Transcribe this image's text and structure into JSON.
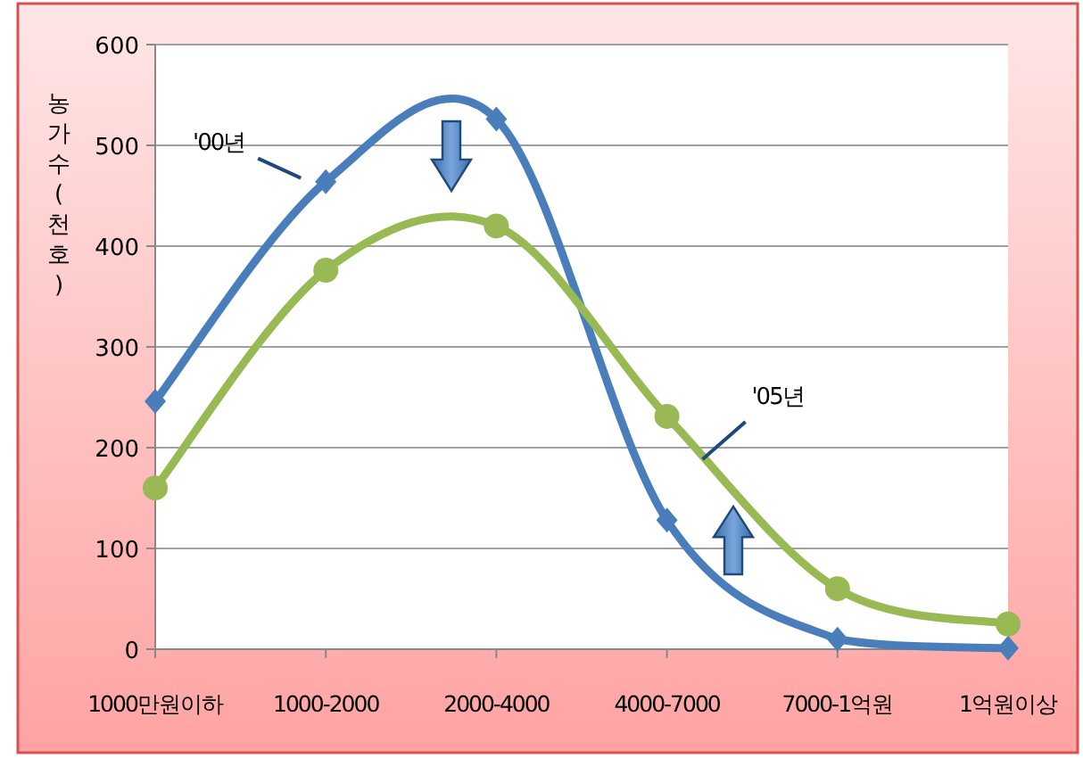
{
  "chart_data": {
    "type": "line",
    "ylabel": "농가수(천호)",
    "categories": [
      "1000만원이하",
      "1000-2000",
      "2000-4000",
      "4000-7000",
      "7000-1억원",
      "1억원이상"
    ],
    "series": [
      {
        "name": "'00년",
        "color": "#4a7ebb",
        "marker": "diamond",
        "values": [
          246,
          464,
          526,
          128,
          10,
          1
        ]
      },
      {
        "name": "'05년",
        "color": "#98b954",
        "marker": "circle",
        "values": [
          160,
          376,
          420,
          231,
          60,
          25
        ]
      }
    ],
    "ylim": [
      0,
      600
    ],
    "yticks": [
      0,
      100,
      200,
      300,
      400,
      500,
      600
    ],
    "grid": "y"
  }
}
